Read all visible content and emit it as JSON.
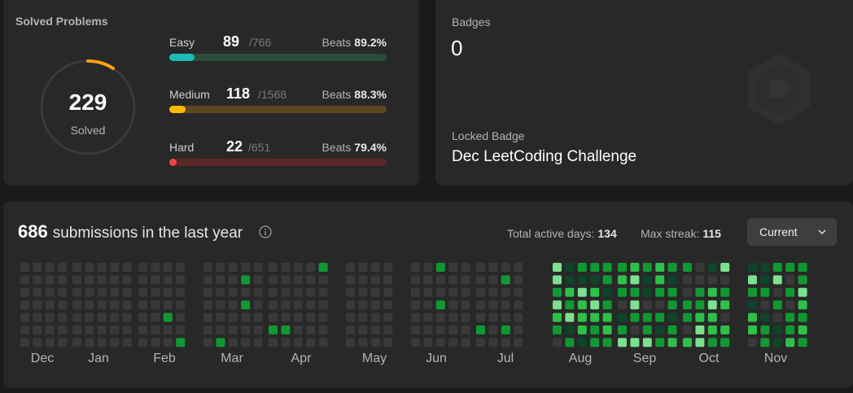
{
  "solved": {
    "title": "Solved Problems",
    "total": "229",
    "label": "Solved",
    "difficulties": [
      {
        "name": "Easy",
        "solved": "89",
        "total": "/766",
        "beats_label": "Beats",
        "beats": "89.2%",
        "fraction": 0.116,
        "color": "#1cbaba",
        "track": "#2a4c3a"
      },
      {
        "name": "Medium",
        "solved": "118",
        "total": "/1568",
        "beats_label": "Beats",
        "beats": "88.3%",
        "fraction": 0.075,
        "color": "#ffb800",
        "track": "#5a4a1e"
      },
      {
        "name": "Hard",
        "solved": "22",
        "total": "/651",
        "beats_label": "Beats",
        "beats": "79.4%",
        "fraction": 0.034,
        "color": "#ef4743",
        "track": "#5a2828"
      }
    ]
  },
  "badges": {
    "title": "Badges",
    "count": "0",
    "locked_label": "Locked Badge",
    "locked_name": "Dec LeetCoding Challenge"
  },
  "submissions": {
    "count": "686",
    "text": "submissions in the last year",
    "active_days_label": "Total active days:",
    "active_days": "134",
    "max_streak_label": "Max streak:",
    "max_streak": "115",
    "dropdown_value": "Current",
    "months": [
      "Dec",
      "Jan",
      "Feb",
      "Mar",
      "Apr",
      "May",
      "Jun",
      "Jul",
      "Aug",
      "Sep",
      "Oct",
      "Nov"
    ],
    "colors": {
      "empty": "#393939",
      "l1": "#0e4429",
      "l2": "#109932",
      "l3": "#2fc049",
      "l4": "#7de08f",
      "l5": "#a5f2b2"
    }
  }
}
